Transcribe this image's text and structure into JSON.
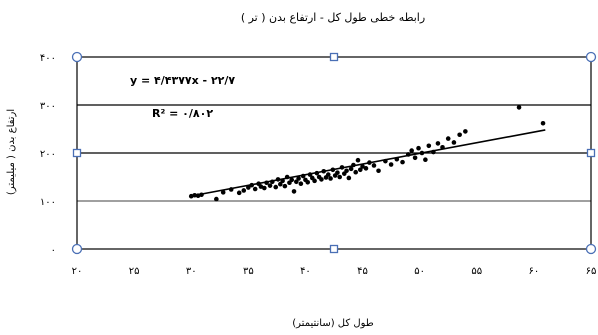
{
  "chart_data": {
    "type": "scatter",
    "title": "رابطه خطی طول کل - ارتفاع بدن ( تر )",
    "xlabel": "طول کل (سانتیمتر)",
    "ylabel": "ارتفاع بدن ( میلیمتر)",
    "xlim": [
      20,
      65
    ],
    "ylim": [
      0,
      400
    ],
    "x_ticks": [
      "۲۰",
      "۲۵",
      "۳۰",
      "۳۵",
      "۴۰",
      "۴۵",
      "۵۰",
      "۵۵",
      "۶۰",
      "۶۵"
    ],
    "x_tick_values": [
      20,
      25,
      30,
      35,
      40,
      45,
      50,
      55,
      60,
      65
    ],
    "y_ticks": [
      "۰",
      "۱۰۰",
      "۲۰۰",
      "۳۰۰",
      "۴۰۰"
    ],
    "y_tick_values": [
      0,
      100,
      200,
      300,
      400
    ],
    "gridlines_y": [
      100,
      200,
      300
    ],
    "equation": "y = ۴/۴۳۷۷x - ۲۲/۷",
    "r_squared": "R² = ۰/۸۰۲",
    "trendline": {
      "slope": 4.4377,
      "intercept": -22.7,
      "x_start": 30,
      "x_end": 61
    },
    "points": [
      {
        "x": 30.0,
        "y": 110
      },
      {
        "x": 30.3,
        "y": 112
      },
      {
        "x": 30.6,
        "y": 111
      },
      {
        "x": 30.9,
        "y": 113
      },
      {
        "x": 32.2,
        "y": 104
      },
      {
        "x": 32.8,
        "y": 118
      },
      {
        "x": 33.5,
        "y": 124
      },
      {
        "x": 34.2,
        "y": 117
      },
      {
        "x": 34.6,
        "y": 122
      },
      {
        "x": 35.0,
        "y": 128
      },
      {
        "x": 35.3,
        "y": 133
      },
      {
        "x": 35.6,
        "y": 125
      },
      {
        "x": 35.9,
        "y": 136
      },
      {
        "x": 36.1,
        "y": 130
      },
      {
        "x": 36.4,
        "y": 127
      },
      {
        "x": 36.6,
        "y": 138
      },
      {
        "x": 36.9,
        "y": 132
      },
      {
        "x": 37.1,
        "y": 140
      },
      {
        "x": 37.4,
        "y": 129
      },
      {
        "x": 37.6,
        "y": 145
      },
      {
        "x": 37.8,
        "y": 135
      },
      {
        "x": 38.0,
        "y": 142
      },
      {
        "x": 38.2,
        "y": 131
      },
      {
        "x": 38.4,
        "y": 150
      },
      {
        "x": 38.6,
        "y": 138
      },
      {
        "x": 38.8,
        "y": 144
      },
      {
        "x": 39.0,
        "y": 120
      },
      {
        "x": 39.2,
        "y": 140
      },
      {
        "x": 39.4,
        "y": 147
      },
      {
        "x": 39.6,
        "y": 136
      },
      {
        "x": 39.8,
        "y": 152
      },
      {
        "x": 40.0,
        "y": 144
      },
      {
        "x": 40.2,
        "y": 139
      },
      {
        "x": 40.4,
        "y": 155
      },
      {
        "x": 40.6,
        "y": 148
      },
      {
        "x": 40.8,
        "y": 142
      },
      {
        "x": 41.0,
        "y": 158
      },
      {
        "x": 41.2,
        "y": 150
      },
      {
        "x": 41.4,
        "y": 145
      },
      {
        "x": 41.6,
        "y": 162
      },
      {
        "x": 41.8,
        "y": 149
      },
      {
        "x": 42.0,
        "y": 155
      },
      {
        "x": 42.2,
        "y": 147
      },
      {
        "x": 42.4,
        "y": 165
      },
      {
        "x": 42.6,
        "y": 153
      },
      {
        "x": 42.8,
        "y": 159
      },
      {
        "x": 43.0,
        "y": 150
      },
      {
        "x": 43.2,
        "y": 170
      },
      {
        "x": 43.4,
        "y": 157
      },
      {
        "x": 43.6,
        "y": 163
      },
      {
        "x": 43.8,
        "y": 148
      },
      {
        "x": 44.0,
        "y": 167
      },
      {
        "x": 44.2,
        "y": 175
      },
      {
        "x": 44.4,
        "y": 160
      },
      {
        "x": 44.6,
        "y": 185
      },
      {
        "x": 44.8,
        "y": 165
      },
      {
        "x": 45.0,
        "y": 172
      },
      {
        "x": 45.3,
        "y": 168
      },
      {
        "x": 45.6,
        "y": 180
      },
      {
        "x": 46.0,
        "y": 174
      },
      {
        "x": 46.4,
        "y": 163
      },
      {
        "x": 47.0,
        "y": 183
      },
      {
        "x": 47.5,
        "y": 176
      },
      {
        "x": 48.0,
        "y": 187
      },
      {
        "x": 48.5,
        "y": 181
      },
      {
        "x": 49.0,
        "y": 197
      },
      {
        "x": 49.3,
        "y": 205
      },
      {
        "x": 49.6,
        "y": 190
      },
      {
        "x": 49.9,
        "y": 210
      },
      {
        "x": 50.2,
        "y": 200
      },
      {
        "x": 50.5,
        "y": 186
      },
      {
        "x": 50.8,
        "y": 215
      },
      {
        "x": 51.2,
        "y": 202
      },
      {
        "x": 51.6,
        "y": 220
      },
      {
        "x": 52.0,
        "y": 212
      },
      {
        "x": 52.5,
        "y": 230
      },
      {
        "x": 53.0,
        "y": 222
      },
      {
        "x": 53.5,
        "y": 238
      },
      {
        "x": 54.0,
        "y": 245
      },
      {
        "x": 58.7,
        "y": 295
      },
      {
        "x": 60.8,
        "y": 262
      }
    ]
  }
}
